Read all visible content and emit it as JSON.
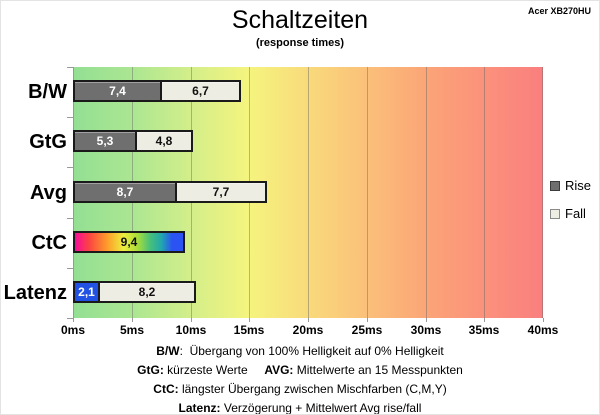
{
  "header": {
    "device_label": "Acer XB270HU"
  },
  "chart_data": {
    "type": "bar",
    "orientation": "horizontal",
    "stacked": true,
    "title": "Schaltzeiten",
    "subtitle": "(response times)",
    "xlim": [
      0,
      40
    ],
    "xtick_step_ms": 5,
    "x_ticks": [
      "0ms",
      "5ms",
      "10ms",
      "15ms",
      "20ms",
      "25ms",
      "30ms",
      "35ms",
      "40ms"
    ],
    "grid": true,
    "categories": [
      "B/W",
      "GtG",
      "Avg",
      "CtC",
      "Latenz"
    ],
    "rows": [
      {
        "label": "B/W",
        "segments": [
          {
            "display": "7,4",
            "ms": 7.4,
            "role": "rise"
          },
          {
            "display": "6,7",
            "ms": 6.7,
            "role": "fall"
          }
        ]
      },
      {
        "label": "GtG",
        "segments": [
          {
            "display": "5,3",
            "ms": 5.3,
            "role": "rise"
          },
          {
            "display": "4,8",
            "ms": 4.8,
            "role": "fall"
          }
        ]
      },
      {
        "label": "Avg",
        "segments": [
          {
            "display": "8,7",
            "ms": 8.7,
            "role": "rise"
          },
          {
            "display": "7,7",
            "ms": 7.7,
            "role": "fall"
          }
        ]
      },
      {
        "label": "CtC",
        "segments": [
          {
            "display": "9,4",
            "ms": 9.4,
            "role": "ctc"
          }
        ]
      },
      {
        "label": "Latenz",
        "segments": [
          {
            "display": "2,1",
            "ms": 2.1,
            "role": "latency"
          },
          {
            "display": "8,2",
            "ms": 8.2,
            "role": "fall"
          }
        ]
      }
    ],
    "legend": {
      "position": "right",
      "items": [
        {
          "label": "Rise",
          "role": "rise"
        },
        {
          "label": "Fall",
          "role": "fall"
        }
      ]
    },
    "colors": {
      "rise": "#6f6f6f",
      "fall": "#eeede3",
      "latency": "#2152e3",
      "bar_border": "#1a1a1a",
      "rise_text": "#ffffff",
      "fall_text": "#111111",
      "plot_gradient": [
        "#93df93",
        "#abe692",
        "#d3ee8a",
        "#f5f47e",
        "#f9da7b",
        "#fbc07a",
        "#fba577",
        "#fb917b",
        "#fa7f7f"
      ],
      "ctc_gradient": [
        {
          "c": "#f50d9a",
          "p": 0
        },
        {
          "c": "#fb4343",
          "p": 13
        },
        {
          "c": "#fd9d2a",
          "p": 30
        },
        {
          "c": "#eeee3e",
          "p": 45
        },
        {
          "c": "#a8dd3a",
          "p": 58
        },
        {
          "c": "#44bf7d",
          "p": 70
        },
        {
          "c": "#21a8ad",
          "p": 80
        },
        {
          "c": "#2b52f2",
          "p": 90
        },
        {
          "c": "#2b52f2",
          "p": 100
        }
      ]
    }
  },
  "footer": {
    "lines": [
      [
        {
          "text": "B/W",
          "bold": true
        },
        {
          "text": ":  Übergang von 100% Helligkeit auf 0% Helligkeit",
          "bold": false
        }
      ],
      [
        {
          "text": "GtG:",
          "bold": true
        },
        {
          "text": " kürzeste Werte",
          "bold": false
        },
        {
          "text": "     ",
          "bold": false
        },
        {
          "text": "AVG:",
          "bold": true
        },
        {
          "text": " Mittelwerte an 15 Messpunkten",
          "bold": false
        }
      ],
      [
        {
          "text": "CtC:",
          "bold": true
        },
        {
          "text": " längster Übergang zwischen Mischfarben (C,M,Y)",
          "bold": false
        }
      ],
      [
        {
          "text": "Latenz:",
          "bold": true
        },
        {
          "text": " Verzögerung + Mittelwert Avg rise/fall",
          "bold": false
        }
      ]
    ]
  }
}
